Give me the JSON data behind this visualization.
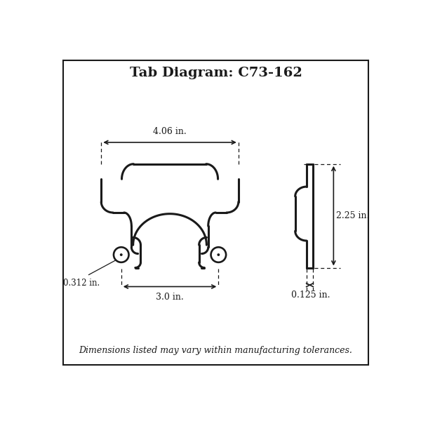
{
  "title": "Tab Diagram: C73-162",
  "footer": "Dimensions listed may vary within manufacturing tolerances.",
  "dim_4_06": "4.06 in.",
  "dim_3_0": "3.0 in.",
  "dim_0312": "0.312 in.",
  "dim_225": "2.25 in.",
  "dim_0125": "0.125 in.",
  "line_color": "#1a1a1a",
  "bg_color": "#ffffff",
  "border_color": "#1a1a1a",
  "title_fontsize": 14,
  "footer_fontsize": 9,
  "dim_fontsize": 9,
  "bracket_lw": 2.2,
  "dim_lw": 1.2,
  "dash_lw": 0.9
}
